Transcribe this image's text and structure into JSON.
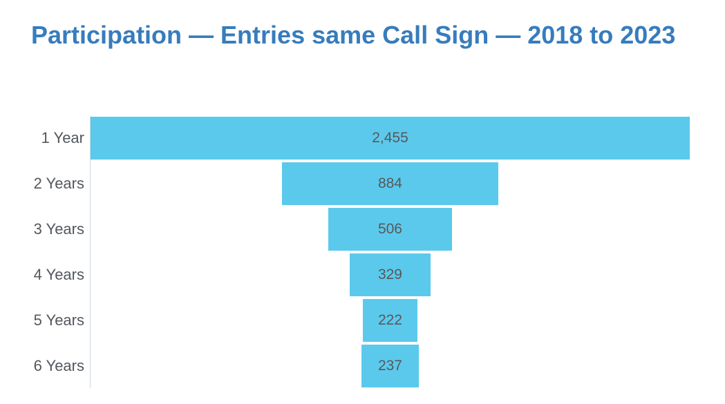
{
  "chart_data": {
    "type": "bar",
    "subtype": "horizontal-centered-funnel",
    "title": "Participation — Entries same Call Sign — 2018 to 2023",
    "categories": [
      "1 Year",
      "2 Years",
      "3 Years",
      "4 Years",
      "5 Years",
      "6 Years"
    ],
    "values": [
      2455,
      884,
      506,
      329,
      222,
      237
    ],
    "value_labels": [
      "2,455",
      "884",
      "506",
      "329",
      "222",
      "237"
    ],
    "xlabel": "",
    "ylabel": "",
    "legend": false,
    "grid": false,
    "layout_hints": {
      "orientation": "horizontal",
      "bars_centered_on_common_axis": true,
      "bar_width_proportional_to_value": true,
      "value_labels_inside_bars": true,
      "category_labels_left_of_axis": true
    },
    "colors": {
      "bar": "#5BC9EC",
      "title": "#377CBD",
      "category_label": "#53575C",
      "value_label": "#58585A",
      "axis_line": "#CCD9E2",
      "background": "#FFFFFF"
    }
  }
}
